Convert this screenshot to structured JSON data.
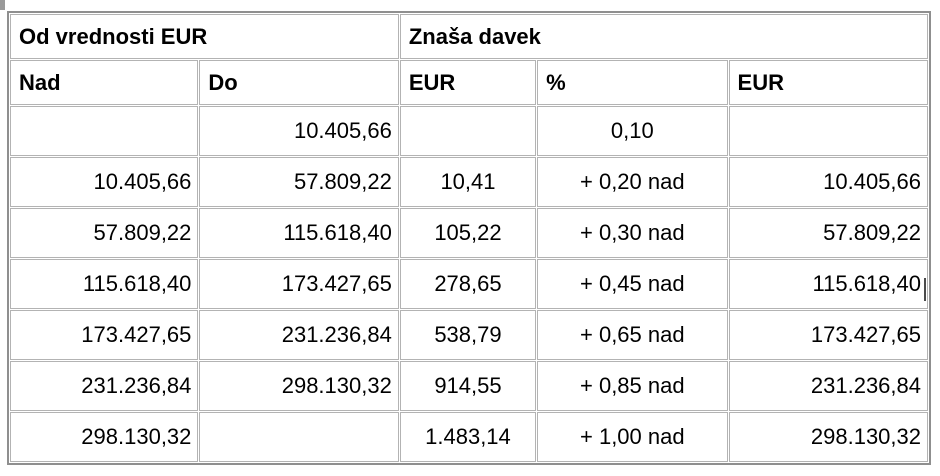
{
  "table": {
    "description": "tax-bracket-table",
    "header_groups": [
      {
        "label": "Od vrednosti EUR",
        "colspan": 2
      },
      {
        "label": "Znaša davek",
        "colspan": 3
      }
    ],
    "columns": [
      {
        "label": "Nad"
      },
      {
        "label": "Do"
      },
      {
        "label": "EUR"
      },
      {
        "label": "%"
      },
      {
        "label": "EUR"
      }
    ],
    "rows": [
      [
        "",
        "10.405,66",
        "",
        "0,10",
        ""
      ],
      [
        "10.405,66",
        "57.809,22",
        "10,41",
        "+ 0,20 nad",
        "10.405,66"
      ],
      [
        "57.809,22",
        "115.618,40",
        "105,22",
        "+ 0,30 nad",
        "57.809,22"
      ],
      [
        "115.618,40",
        "173.427,65",
        "278,65",
        "+ 0,45 nad",
        "115.618,40"
      ],
      [
        "173.427,65",
        "231.236,84",
        "538,79",
        "+ 0,65 nad",
        "173.427,65"
      ],
      [
        "231.236,84",
        "298.130,32",
        "914,55",
        "+ 0,85 nad",
        "231.236,84"
      ],
      [
        "298.130,32",
        "",
        "1.483,14",
        "+ 1,00 nad",
        "298.130,32"
      ]
    ],
    "colors": {
      "outer_border": "#8f8f8f",
      "inner_border": "#b3b3b3",
      "text": "#000000",
      "background": "#ffffff"
    }
  }
}
